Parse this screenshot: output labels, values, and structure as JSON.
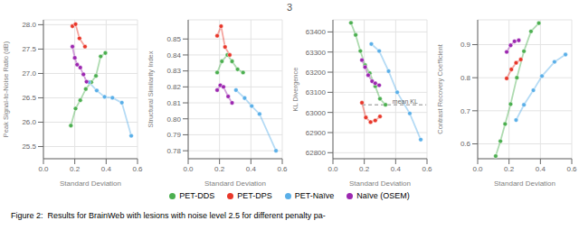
{
  "title": "3",
  "caption": "Figure 2:  Results for BrainWeb with lesions with noise level 2.5 for different penalty pa-",
  "legend": "bottom",
  "chart_data": [
    {
      "type": "line",
      "xlabel": "Standard Deviation",
      "ylabel": "Peak Signal-to-Noise Ratio (dB)",
      "xlim": [
        0.0,
        0.6
      ],
      "xticks": [
        {
          "value": 0,
          "label": "0.0"
        },
        0.2,
        0.4,
        0.6
      ],
      "ylim": [
        25.25,
        28.1
      ],
      "yticks": [
        25.5,
        {
          "value": 26,
          "label": "26.0"
        },
        26.5,
        {
          "value": 27,
          "label": "27.0"
        },
        27.5,
        {
          "value": 28,
          "label": "28.0"
        }
      ],
      "grid": true,
      "marker": "circle",
      "series": [
        {
          "name": "PET-DDS",
          "color": "#4caf50",
          "x": [
            0.175,
            0.205,
            0.235,
            0.27,
            0.305,
            0.335,
            0.365,
            0.395
          ],
          "values": [
            25.93,
            26.28,
            26.45,
            26.68,
            26.82,
            26.95,
            27.35,
            27.42
          ]
        },
        {
          "name": "PET-DPS",
          "color": "#e8372a",
          "x": [
            0.185,
            0.205,
            0.23,
            0.265
          ],
          "values": [
            27.97,
            28.01,
            27.72,
            27.55
          ]
        },
        {
          "name": "PET-Naïve",
          "color": "#5aafe8",
          "x": [
            0.29,
            0.34,
            0.39,
            0.44,
            0.5,
            0.56
          ],
          "values": [
            26.82,
            26.65,
            26.52,
            26.5,
            26.4,
            25.72
          ]
        },
        {
          "name": "Naïve (OSEM)",
          "color": "#9c27b0",
          "x": [
            0.185,
            0.2,
            0.215,
            0.235,
            0.255,
            0.275
          ],
          "values": [
            27.55,
            27.32,
            27.18,
            27.12,
            26.98,
            26.83
          ]
        }
      ]
    },
    {
      "type": "line",
      "xlabel": "Standard Deviation",
      "ylabel": "Structural Similarity Index",
      "xlim": [
        0.0,
        0.6
      ],
      "xticks": [
        {
          "value": 0,
          "label": "0.0"
        },
        0.2,
        0.4,
        0.6
      ],
      "ylim": [
        0.775,
        0.862
      ],
      "yticks": [
        0.78,
        0.79,
        {
          "value": 0.8,
          "label": "0.80"
        },
        0.81,
        0.82,
        0.83,
        0.84,
        0.85
      ],
      "grid": true,
      "marker": "circle",
      "series": [
        {
          "name": "PET-DDS",
          "color": "#4caf50",
          "x": [
            0.185,
            0.215,
            0.25,
            0.28,
            0.315,
            0.35
          ],
          "values": [
            0.829,
            0.836,
            0.84,
            0.836,
            0.831,
            0.829
          ]
        },
        {
          "name": "PET-DPS",
          "color": "#e8372a",
          "x": [
            0.185,
            0.21,
            0.235,
            0.265
          ],
          "values": [
            0.852,
            0.858,
            0.845,
            0.84
          ]
        },
        {
          "name": "PET-Naïve",
          "color": "#5aafe8",
          "x": [
            0.305,
            0.36,
            0.405,
            0.455,
            0.56
          ],
          "values": [
            0.818,
            0.813,
            0.808,
            0.803,
            0.78
          ]
        },
        {
          "name": "Naïve (OSEM)",
          "color": "#9c27b0",
          "x": [
            0.185,
            0.205,
            0.225,
            0.255,
            0.28
          ],
          "values": [
            0.818,
            0.821,
            0.82,
            0.814,
            0.81
          ]
        }
      ]
    },
    {
      "type": "line",
      "xlabel": "Standard Deviation",
      "ylabel": "KL Divergence",
      "xlim": [
        0.0,
        0.6
      ],
      "xticks": [
        {
          "value": 0,
          "label": "0.0"
        },
        0.2,
        0.4,
        0.6
      ],
      "ylim": [
        62770,
        63460
      ],
      "yticks": [
        62800,
        62900,
        63000,
        63100,
        63200,
        63300,
        63400
      ],
      "grid": true,
      "marker": "circle",
      "reference_line": {
        "y": 63038,
        "x": [
          0.185,
          0.595
        ],
        "line_style": "dashed"
      },
      "annotations": [
        {
          "text": "mean KL",
          "x": 0.38,
          "y": 63056
        }
      ],
      "series": [
        {
          "name": "PET-DDS",
          "color": "#4caf50",
          "x": [
            0.115,
            0.145,
            0.175,
            0.205,
            0.235,
            0.27,
            0.3,
            0.335
          ],
          "values": [
            63445,
            63385,
            63305,
            63235,
            63195,
            63130,
            63068,
            63038
          ]
        },
        {
          "name": "PET-DPS",
          "color": "#e8372a",
          "x": [
            0.185,
            0.21,
            0.24,
            0.27,
            0.3
          ],
          "values": [
            63048,
            62975,
            62952,
            62960,
            62980
          ]
        },
        {
          "name": "PET-Naïve",
          "color": "#5aafe8",
          "x": [
            0.245,
            0.295,
            0.355,
            0.41,
            0.49,
            0.56
          ],
          "values": [
            63340,
            63305,
            63205,
            63100,
            62995,
            62865
          ]
        },
        {
          "name": "Naïve (OSEM)",
          "color": "#9c27b0",
          "x": [
            0.185,
            0.205,
            0.225,
            0.25,
            0.27,
            0.295
          ],
          "values": [
            63260,
            63225,
            63185,
            63155,
            63145,
            63135
          ]
        }
      ]
    },
    {
      "type": "line",
      "xlabel": "Standard Deviation",
      "ylabel": "Contrast Recovery Coefficient",
      "xlim": [
        0.0,
        0.6
      ],
      "xticks": [
        {
          "value": 0,
          "label": "0.0"
        },
        0.2,
        0.4,
        0.6
      ],
      "ylim": [
        0.555,
        0.975
      ],
      "yticks": [
        0.6,
        0.7,
        0.8,
        0.9
      ],
      "grid": true,
      "marker": "circle",
      "series": [
        {
          "name": "PET-DDS",
          "color": "#4caf50",
          "x": [
            0.115,
            0.145,
            0.175,
            0.21,
            0.25,
            0.295,
            0.34,
            0.39
          ],
          "values": [
            0.563,
            0.608,
            0.66,
            0.72,
            0.8,
            0.88,
            0.94,
            0.965
          ]
        },
        {
          "name": "PET-DPS",
          "color": "#e8372a",
          "x": [
            0.185,
            0.215,
            0.245,
            0.275
          ],
          "values": [
            0.798,
            0.825,
            0.845,
            0.855
          ]
        },
        {
          "name": "PET-Naïve",
          "color": "#5aafe8",
          "x": [
            0.245,
            0.295,
            0.355,
            0.41,
            0.49,
            0.56
          ],
          "values": [
            0.672,
            0.718,
            0.762,
            0.805,
            0.848,
            0.87
          ]
        },
        {
          "name": "Naïve (OSEM)",
          "color": "#9c27b0",
          "x": [
            0.185,
            0.21,
            0.235,
            0.262
          ],
          "values": [
            0.878,
            0.898,
            0.91,
            0.913
          ]
        }
      ]
    }
  ]
}
